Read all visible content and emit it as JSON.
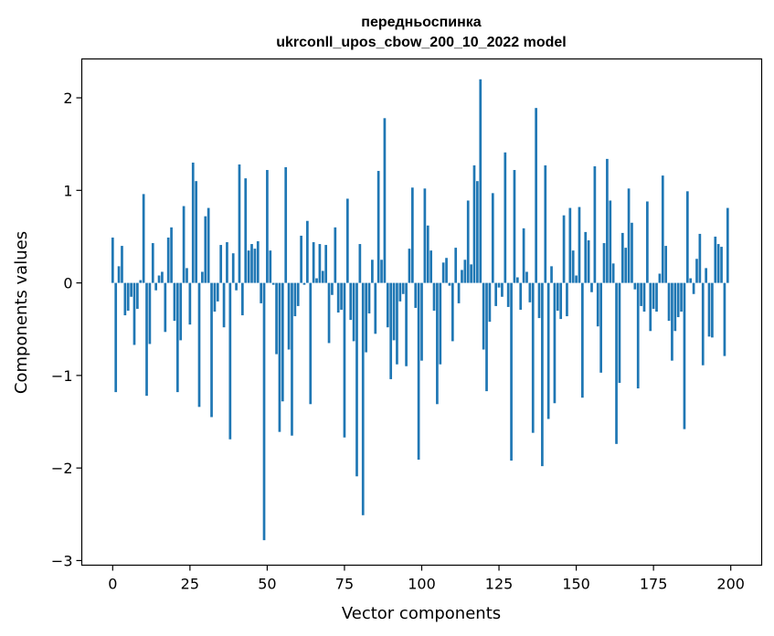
{
  "chart_data": {
    "type": "bar",
    "title_line1": "передньоспинка",
    "title_line2": "ukrconll_upos_cbow_200_10_2022 model",
    "xlabel": "Vector components",
    "ylabel": "Components values",
    "xlim": [
      -10,
      210
    ],
    "ylim": [
      -3.05,
      2.42
    ],
    "x_ticks": [
      0,
      25,
      50,
      75,
      100,
      125,
      150,
      175,
      200
    ],
    "x_tick_labels": [
      "0",
      "25",
      "50",
      "75",
      "100",
      "125",
      "150",
      "175",
      "200"
    ],
    "y_ticks": [
      -3,
      -2,
      -1,
      0,
      1,
      2
    ],
    "y_tick_labels": [
      "−3",
      "−2",
      "−1",
      "0",
      "1",
      "2"
    ],
    "grid": false,
    "bar_color": "#1f77b4",
    "values": [
      0.49,
      -1.18,
      0.18,
      0.4,
      -0.35,
      -0.3,
      -0.15,
      -0.67,
      -0.28,
      0.03,
      0.96,
      -1.22,
      -0.66,
      0.43,
      -0.08,
      0.08,
      0.12,
      -0.53,
      0.49,
      0.6,
      -0.41,
      -1.18,
      -0.62,
      0.83,
      0.16,
      -0.45,
      1.3,
      1.1,
      -1.34,
      0.12,
      0.72,
      0.81,
      -1.45,
      -0.31,
      -0.2,
      0.41,
      -0.48,
      0.44,
      -1.69,
      0.32,
      -0.08,
      1.28,
      -0.35,
      1.13,
      0.35,
      0.42,
      0.37,
      0.45,
      -0.22,
      -2.78,
      1.22,
      0.35,
      -0.02,
      -0.77,
      -1.61,
      -1.28,
      1.25,
      -0.72,
      -1.65,
      -0.36,
      -0.25,
      0.51,
      -0.02,
      0.67,
      -1.31,
      0.44,
      0.05,
      0.42,
      0.13,
      0.41,
      -0.65,
      -0.13,
      0.6,
      -0.32,
      -0.29,
      -1.67,
      0.91,
      -0.4,
      -0.63,
      -2.09,
      0.42,
      -2.51,
      -0.75,
      -0.33,
      0.25,
      -0.55,
      1.21,
      0.25,
      1.78,
      -0.48,
      -1.04,
      -0.62,
      -0.88,
      -0.2,
      -0.12,
      -0.9,
      0.37,
      1.03,
      -0.27,
      -1.91,
      -0.84,
      1.02,
      0.62,
      0.35,
      -0.3,
      -1.31,
      -0.88,
      0.22,
      0.27,
      -0.03,
      -0.63,
      0.38,
      -0.22,
      0.14,
      0.25,
      0.89,
      0.2,
      1.27,
      1.1,
      2.2,
      -0.72,
      -1.17,
      -0.42,
      0.97,
      -0.25,
      -0.05,
      -0.15,
      1.41,
      -0.26,
      -1.92,
      1.22,
      0.06,
      -0.29,
      0.59,
      0.12,
      -0.21,
      -1.62,
      1.89,
      -0.38,
      -1.98,
      1.27,
      -1.47,
      0.18,
      -1.3,
      -0.3,
      -0.39,
      0.73,
      -0.36,
      0.81,
      0.35,
      0.08,
      0.82,
      -1.24,
      0.55,
      0.46,
      -0.1,
      1.26,
      -0.47,
      -0.97,
      0.43,
      1.34,
      0.89,
      0.21,
      -1.74,
      -1.08,
      0.54,
      0.38,
      1.02,
      0.65,
      -0.07,
      -1.14,
      -0.25,
      -0.31,
      0.88,
      -0.52,
      -0.28,
      -0.31,
      0.1,
      1.16,
      0.4,
      -0.41,
      -0.84,
      -0.52,
      -0.37,
      -0.31,
      -1.58,
      0.99,
      0.05,
      -0.12,
      0.26,
      0.53,
      -0.89,
      0.16,
      -0.58,
      -0.59,
      0.5,
      0.42,
      0.39,
      -0.79,
      0.81
    ]
  }
}
